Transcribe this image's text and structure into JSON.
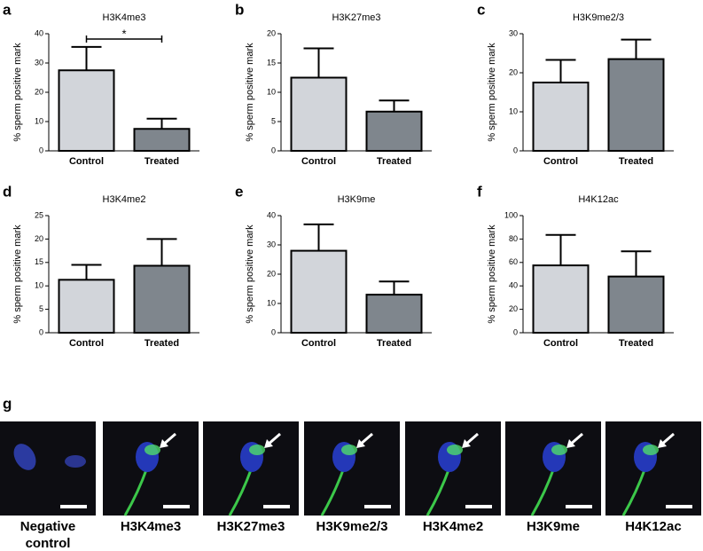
{
  "chart_data": [
    {
      "type": "bar",
      "panel": "a",
      "title": "H3K4me3",
      "ylabel": "% sperm positive mark",
      "categories": [
        "Control",
        "Treated"
      ],
      "values": [
        27.5,
        7.5
      ],
      "errors": [
        8,
        3.5
      ],
      "colors": [
        "#d2d5da",
        "#7f868d"
      ],
      "ylim": [
        0,
        40
      ],
      "yticks": [
        0,
        10,
        20,
        30,
        40
      ],
      "annotation": "*"
    },
    {
      "type": "bar",
      "panel": "b",
      "title": "H3K27me3",
      "ylabel": "% sperm positive mark",
      "categories": [
        "Control",
        "Treated"
      ],
      "values": [
        12.5,
        6.7
      ],
      "errors": [
        5,
        1.9
      ],
      "colors": [
        "#d2d5da",
        "#7f868d"
      ],
      "ylim": [
        0,
        20
      ],
      "yticks": [
        0,
        5,
        10,
        15,
        20
      ]
    },
    {
      "type": "bar",
      "panel": "c",
      "title": "H3K9me2/3",
      "ylabel": "% sperm positive mark",
      "categories": [
        "Control",
        "Treated"
      ],
      "values": [
        17.5,
        23.5
      ],
      "errors": [
        5.8,
        5
      ],
      "colors": [
        "#d2d5da",
        "#7f868d"
      ],
      "ylim": [
        0,
        30
      ],
      "yticks": [
        0,
        10,
        20,
        30
      ]
    },
    {
      "type": "bar",
      "panel": "d",
      "title": "H3K4me2",
      "ylabel": "% sperm positive mark",
      "categories": [
        "Control",
        "Treated"
      ],
      "values": [
        11.3,
        14.3
      ],
      "errors": [
        3.2,
        5.7
      ],
      "colors": [
        "#d2d5da",
        "#7f868d"
      ],
      "ylim": [
        0,
        25
      ],
      "yticks": [
        0,
        5,
        10,
        15,
        20,
        25
      ]
    },
    {
      "type": "bar",
      "panel": "e",
      "title": "H3K9me",
      "ylabel": "% sperm positive mark",
      "categories": [
        "Control",
        "Treated"
      ],
      "values": [
        28,
        13
      ],
      "errors": [
        9,
        4.5
      ],
      "colors": [
        "#d2d5da",
        "#7f868d"
      ],
      "ylim": [
        0,
        40
      ],
      "yticks": [
        0,
        10,
        20,
        30,
        40
      ]
    },
    {
      "type": "bar",
      "panel": "f",
      "title": "H4K12ac",
      "ylabel": "% sperm positive mark",
      "categories": [
        "Control",
        "Treated"
      ],
      "values": [
        57.5,
        48
      ],
      "errors": [
        26,
        21.5
      ],
      "colors": [
        "#d2d5da",
        "#7f868d"
      ],
      "ylim": [
        0,
        100
      ],
      "yticks": [
        0,
        20,
        40,
        60,
        80,
        100
      ]
    }
  ],
  "images": {
    "panel": "g",
    "labels": [
      "Negative control",
      "H3K4me3",
      "H3K27me3",
      "H3K9me2/3",
      "H3K4me2",
      "H3K9me",
      "H4K12ac"
    ]
  }
}
